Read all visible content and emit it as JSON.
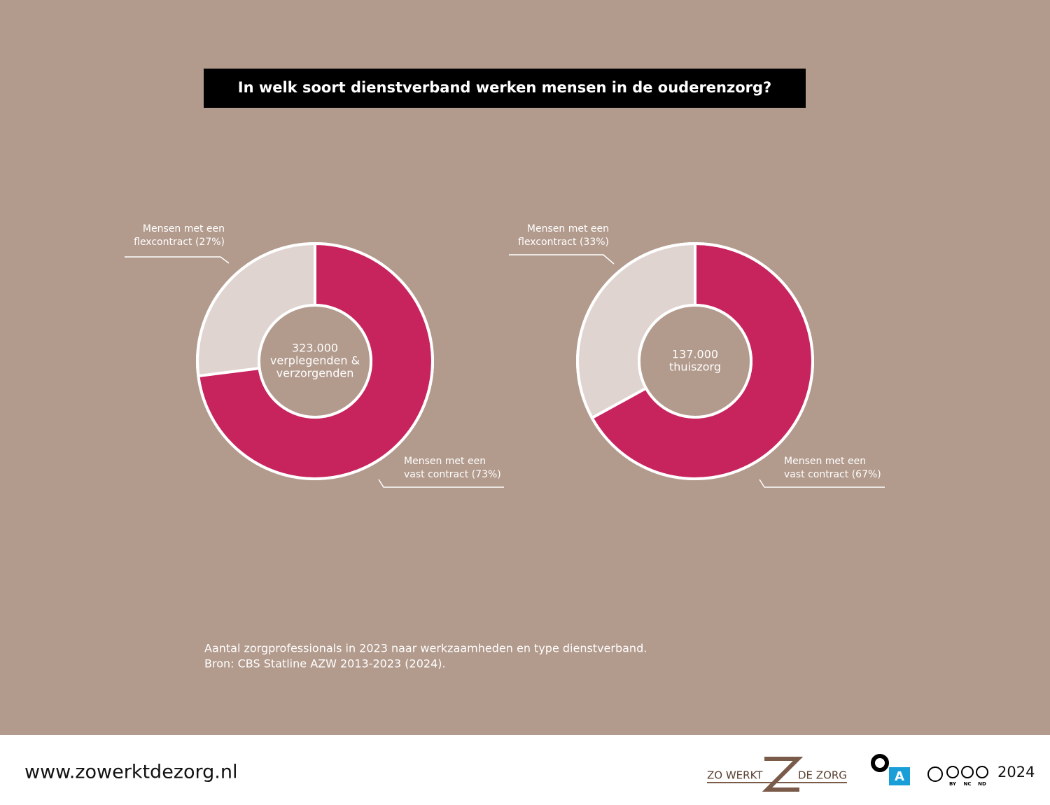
{
  "title": "In welk soort dienstverband werken mensen in de ouderenzorg?",
  "chart_data": [
    {
      "type": "donut",
      "center_label": [
        "323.000",
        "verplegenden &",
        "verzorgenden"
      ],
      "values": [
        73,
        27
      ],
      "value_labels": [
        [
          "Mensen met een",
          "vast contract (73%)"
        ],
        [
          "Mensen met een",
          "flexcontract (27%)"
        ]
      ],
      "colors": [
        "#c7245d",
        "#dfd4cf"
      ]
    },
    {
      "type": "donut",
      "center_label": [
        "137.000",
        "thuiszorg"
      ],
      "values": [
        67,
        33
      ],
      "value_labels": [
        [
          "Mensen met een",
          "vast contract (67%)"
        ],
        [
          "Mensen met een",
          "flexcontract (33%)"
        ]
      ],
      "colors": [
        "#c7245d",
        "#dfd4cf"
      ]
    }
  ],
  "note": [
    "Aantal zorgprofessionals in 2023 naar werkzaamheden en type dienstverband.",
    "Bron: CBS Statline AZW 2013-2023 (2024)."
  ],
  "footer": {
    "url": "www.zowerktdezorg.nl",
    "logo_left": "ZO WERKT",
    "logo_right": "DE ZORG",
    "logo_a": "A",
    "license": [
      "BY",
      "NC",
      "ND"
    ],
    "year": "2024"
  }
}
